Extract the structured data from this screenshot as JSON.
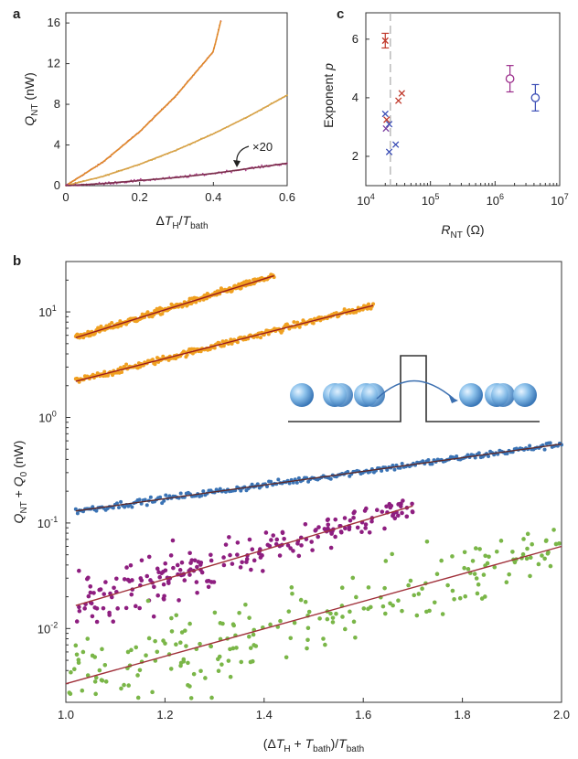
{
  "chart_data": [
    {
      "panel": "a",
      "type": "line",
      "xlabel": "ΔT_H/T_bath",
      "ylabel": "Q_NT (nW)",
      "xlim": [
        0,
        0.6
      ],
      "ylim": [
        0,
        17
      ],
      "xticks": [
        "0",
        "0.2",
        "0.4",
        "0.6"
      ],
      "yticks": [
        "0",
        "4",
        "8",
        "12",
        "16"
      ],
      "annotation": "×20",
      "series": [
        {
          "name": "upper",
          "point_color": "#c0392b",
          "line_color": "#e08a2c",
          "x": [
            0,
            0.1,
            0.2,
            0.3,
            0.4,
            0.42
          ],
          "y": [
            0,
            2.3,
            5.3,
            8.9,
            13.2,
            16.2
          ]
        },
        {
          "name": "middle",
          "point_color": "#c8a02a",
          "line_color": "#d8a24a",
          "x": [
            0,
            0.1,
            0.2,
            0.3,
            0.4,
            0.5,
            0.6
          ],
          "y": [
            0,
            0.9,
            2.1,
            3.5,
            5.1,
            6.9,
            8.9
          ]
        },
        {
          "name": "lower ×20",
          "point_color": "#b04090",
          "line_color": "#7a2e4a",
          "x": [
            0,
            0.1,
            0.2,
            0.3,
            0.4,
            0.5,
            0.6
          ],
          "y": [
            0,
            0.2,
            0.5,
            0.8,
            1.2,
            1.7,
            2.2
          ]
        }
      ]
    },
    {
      "panel": "c",
      "type": "scatter",
      "xlabel": "R_NT (Ω)",
      "ylabel": "Exponent p",
      "xscale": "log",
      "xlim": [
        10000,
        10000000
      ],
      "ylim": [
        1,
        6.9
      ],
      "xticks": [
        "10^4",
        "10^5",
        "10^6",
        "10^7"
      ],
      "yticks": [
        "2",
        "4",
        "6"
      ],
      "dashed_x": 24000,
      "points": [
        {
          "x": 20000,
          "y": 5.95,
          "color": "#c0392b",
          "marker": "x",
          "err": 0.25
        },
        {
          "x": 20000,
          "y": 3.45,
          "color": "#3a4db5",
          "marker": "x"
        },
        {
          "x": 21000,
          "y": 3.25,
          "color": "#c0392b",
          "marker": "x"
        },
        {
          "x": 20500,
          "y": 2.95,
          "color": "#7a3ea0",
          "marker": "x"
        },
        {
          "x": 23000,
          "y": 3.1,
          "color": "#3a4db5",
          "marker": "x"
        },
        {
          "x": 23000,
          "y": 2.15,
          "color": "#3a4db5",
          "marker": "x"
        },
        {
          "x": 29000,
          "y": 2.4,
          "color": "#3a4db5",
          "marker": "x"
        },
        {
          "x": 32000,
          "y": 3.9,
          "color": "#c0392b",
          "marker": "x"
        },
        {
          "x": 36000,
          "y": 4.15,
          "color": "#c0392b",
          "marker": "x"
        },
        {
          "x": 1700000,
          "y": 4.65,
          "color": "#9b2c8b",
          "marker": "o",
          "err": 0.45
        },
        {
          "x": 4200000,
          "y": 4.0,
          "color": "#3a4db5",
          "marker": "o",
          "err": 0.45
        }
      ]
    },
    {
      "panel": "b",
      "type": "scatter",
      "xlabel": "(ΔT_H + T_bath)/T_bath",
      "ylabel": "Q_NT + Q_0 (nW)",
      "yscale": "log",
      "xlim": [
        1.0,
        2.0
      ],
      "ylim": [
        0.002,
        30
      ],
      "xticks": [
        "1.0",
        "1.2",
        "1.4",
        "1.6",
        "1.8",
        "2.0"
      ],
      "yticks": [
        "10^1",
        "10^0",
        "10^-1",
        "10^-2"
      ],
      "series": [
        {
          "name": "top orange",
          "color": "#f0a020",
          "fit_color": "#9b1c1c",
          "x": [
            1.02,
            1.42
          ],
          "y": [
            5.7,
            22
          ],
          "noise": 0.03
        },
        {
          "name": "second orange",
          "color": "#f0a020",
          "fit_color": "#9b1c1c",
          "x": [
            1.02,
            1.62
          ],
          "y": [
            2.2,
            11.5
          ],
          "noise": 0.03
        },
        {
          "name": "blue",
          "color": "#3a73b5",
          "fit_color": "#5c2a2a",
          "x": [
            1.02,
            2.0
          ],
          "y": [
            0.13,
            0.56
          ],
          "noise": 0.03
        },
        {
          "name": "purple",
          "color": "#8e1e80",
          "fit_color": "#a0303a",
          "x": [
            1.02,
            1.7
          ],
          "y": [
            0.0165,
            0.145
          ],
          "noise": 0.2
        },
        {
          "name": "green",
          "color": "#7ab648",
          "fit_color": "#a0303a",
          "x": [
            1.0,
            2.0
          ],
          "y": [
            0.003,
            0.06
          ],
          "noise": 0.35
        }
      ]
    }
  ],
  "labels": {
    "panel_a": "a",
    "panel_b": "b",
    "panel_c": "c",
    "times20": "×20"
  }
}
